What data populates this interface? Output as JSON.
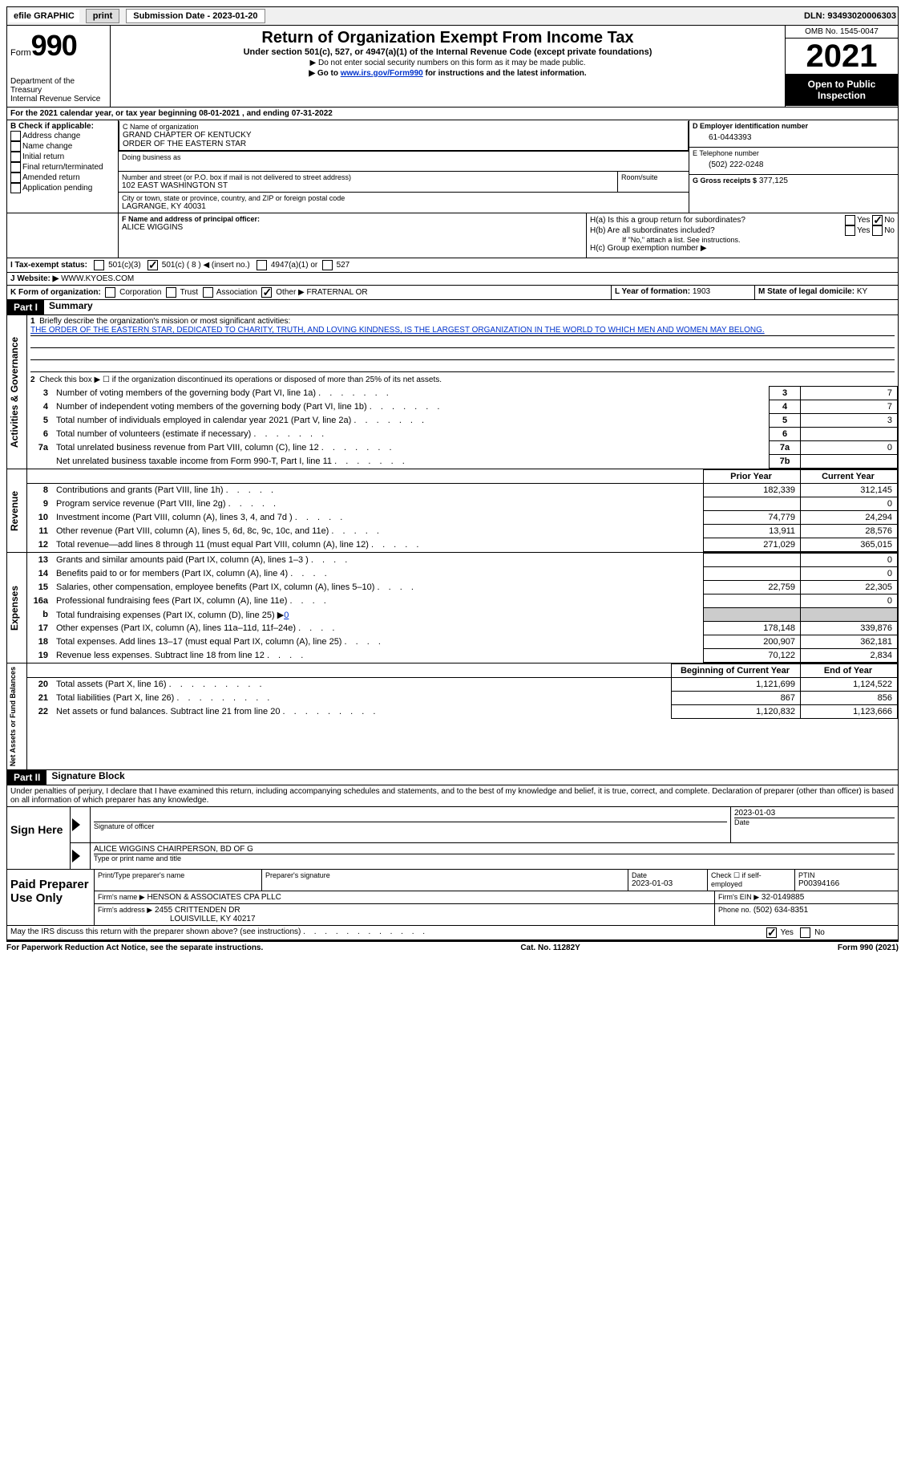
{
  "topbar": {
    "efile": "efile GRAPHIC",
    "print": "print",
    "subdate_label": "Submission Date - 2023-01-20",
    "dln": "DLN: 93493020006303"
  },
  "header": {
    "form_word": "Form",
    "form_num": "990",
    "dept": "Department of the Treasury",
    "irs": "Internal Revenue Service",
    "title": "Return of Organization Exempt From Income Tax",
    "sub": "Under section 501(c), 527, or 4947(a)(1) of the Internal Revenue Code (except private foundations)",
    "note1": "▶ Do not enter social security numbers on this form as it may be made public.",
    "note2_pre": "▶ Go to ",
    "note2_link": "www.irs.gov/Form990",
    "note2_post": " for instructions and the latest information.",
    "omb": "OMB No. 1545-0047",
    "year": "2021",
    "inspect": "Open to Public Inspection"
  },
  "period": {
    "line": "For the 2021 calendar year, or tax year beginning 08-01-2021   , and ending 07-31-2022"
  },
  "sectionB": {
    "label": "B Check if applicable:",
    "addr": "Address change",
    "name": "Name change",
    "init": "Initial return",
    "final": "Final return/terminated",
    "amend": "Amended return",
    "app": "Application pending"
  },
  "sectionC": {
    "label": "C Name of organization",
    "name1": "GRAND CHAPTER OF KENTUCKY",
    "name2": "ORDER OF THE EASTERN STAR",
    "dba": "Doing business as",
    "addr_label": "Number and street (or P.O. box if mail is not delivered to street address)",
    "room": "Room/suite",
    "addr": "102 EAST WASHINGTON ST",
    "city_label": "City or town, state or province, country, and ZIP or foreign postal code",
    "city": "LAGRANGE, KY  40031"
  },
  "sectionD": {
    "label": "D Employer identification number",
    "val": "61-0443393"
  },
  "sectionE": {
    "label": "E Telephone number",
    "val": "(502) 222-0248"
  },
  "sectionG": {
    "label": "G Gross receipts $",
    "val": "377,125"
  },
  "sectionF": {
    "label": "F  Name and address of principal officer:",
    "val": "ALICE WIGGINS"
  },
  "sectionH": {
    "a": "H(a)  Is this a group return for subordinates?",
    "b": "H(b)  Are all subordinates included?",
    "b_note": "If \"No,\" attach a list. See instructions.",
    "c": "H(c)  Group exemption number ▶",
    "yes": "Yes",
    "no": "No"
  },
  "sectionI": {
    "label": "I   Tax-exempt status:",
    "c3": "501(c)(3)",
    "c": "501(c) ( 8 ) ◀ (insert no.)",
    "a1": "4947(a)(1) or",
    "s527": "527"
  },
  "sectionJ": {
    "label": "J   Website: ▶",
    "val": "WWW.KYOES.COM"
  },
  "sectionK": {
    "label": "K Form of organization:",
    "corp": "Corporation",
    "trust": "Trust",
    "assoc": "Association",
    "other": "Other ▶",
    "other_val": "FRATERNAL OR"
  },
  "sectionL": {
    "label": "L Year of formation:",
    "val": "1903"
  },
  "sectionM": {
    "label": "M State of legal domicile:",
    "val": "KY"
  },
  "part1": {
    "hdr": "Part I",
    "title": "Summary",
    "l1a": "Briefly describe the organization's mission or most significant activities:",
    "l1b": "THE ORDER OF THE EASTERN STAR, DEDICATED TO CHARITY, TRUTH, AND LOVING KINDNESS, IS THE LARGEST ORGANIZATION IN THE WORLD TO WHICH MEN AND WOMEN MAY BELONG.",
    "l2": "Check this box ▶ ☐  if the organization discontinued its operations or disposed of more than 25% of its net assets.",
    "rows": [
      {
        "n": "3",
        "t": "Number of voting members of the governing body (Part VI, line 1a)",
        "box": "3",
        "v": "7"
      },
      {
        "n": "4",
        "t": "Number of independent voting members of the governing body (Part VI, line 1b)",
        "box": "4",
        "v": "7"
      },
      {
        "n": "5",
        "t": "Total number of individuals employed in calendar year 2021 (Part V, line 2a)",
        "box": "5",
        "v": "3"
      },
      {
        "n": "6",
        "t": "Total number of volunteers (estimate if necessary)",
        "box": "6",
        "v": ""
      },
      {
        "n": "7a",
        "t": "Total unrelated business revenue from Part VIII, column (C), line 12",
        "box": "7a",
        "v": "0"
      },
      {
        "n": "",
        "t": "Net unrelated business taxable income from Form 990-T, Part I, line 11",
        "box": "7b",
        "v": ""
      }
    ],
    "col_hdr_prior": "Prior Year",
    "col_hdr_current": "Current Year",
    "rev_rows": [
      {
        "n": "8",
        "t": "Contributions and grants (Part VIII, line 1h)",
        "p": "182,339",
        "c": "312,145"
      },
      {
        "n": "9",
        "t": "Program service revenue (Part VIII, line 2g)",
        "p": "",
        "c": "0"
      },
      {
        "n": "10",
        "t": "Investment income (Part VIII, column (A), lines 3, 4, and 7d )",
        "p": "74,779",
        "c": "24,294"
      },
      {
        "n": "11",
        "t": "Other revenue (Part VIII, column (A), lines 5, 6d, 8c, 9c, 10c, and 11e)",
        "p": "13,911",
        "c": "28,576"
      },
      {
        "n": "12",
        "t": "Total revenue—add lines 8 through 11 (must equal Part VIII, column (A), line 12)",
        "p": "271,029",
        "c": "365,015"
      }
    ],
    "exp_rows": [
      {
        "n": "13",
        "t": "Grants and similar amounts paid (Part IX, column (A), lines 1–3 )",
        "p": "",
        "c": "0"
      },
      {
        "n": "14",
        "t": "Benefits paid to or for members (Part IX, column (A), line 4)",
        "p": "",
        "c": "0"
      },
      {
        "n": "15",
        "t": "Salaries, other compensation, employee benefits (Part IX, column (A), lines 5–10)",
        "p": "22,759",
        "c": "22,305"
      },
      {
        "n": "16a",
        "t": "Professional fundraising fees (Part IX, column (A), line 11e)",
        "p": "",
        "c": "0"
      },
      {
        "n": "b",
        "t": "Total fundraising expenses (Part IX, column (D), line 25) ▶",
        "fund": "0",
        "grey": true
      },
      {
        "n": "17",
        "t": "Other expenses (Part IX, column (A), lines 11a–11d, 11f–24e)",
        "p": "178,148",
        "c": "339,876"
      },
      {
        "n": "18",
        "t": "Total expenses. Add lines 13–17 (must equal Part IX, column (A), line 25)",
        "p": "200,907",
        "c": "362,181"
      },
      {
        "n": "19",
        "t": "Revenue less expenses. Subtract line 18 from line 12",
        "p": "70,122",
        "c": "2,834"
      }
    ],
    "na_hdr_begin": "Beginning of Current Year",
    "na_hdr_end": "End of Year",
    "na_rows": [
      {
        "n": "20",
        "t": "Total assets (Part X, line 16)",
        "p": "1,121,699",
        "c": "1,124,522"
      },
      {
        "n": "21",
        "t": "Total liabilities (Part X, line 26)",
        "p": "867",
        "c": "856"
      },
      {
        "n": "22",
        "t": "Net assets or fund balances. Subtract line 21 from line 20",
        "p": "1,120,832",
        "c": "1,123,666"
      }
    ],
    "side_act": "Activities & Governance",
    "side_rev": "Revenue",
    "side_exp": "Expenses",
    "side_na": "Net Assets or Fund Balances"
  },
  "part2": {
    "hdr": "Part II",
    "title": "Signature Block",
    "decl": "Under penalties of perjury, I declare that I have examined this return, including accompanying schedules and statements, and to the best of my knowledge and belief, it is true, correct, and complete. Declaration of preparer (other than officer) is based on all information of which preparer has any knowledge.",
    "sign_here": "Sign Here",
    "sig_officer": "Signature of officer",
    "sig_date": "2023-01-03",
    "date_label": "Date",
    "typed_name": "ALICE WIGGINS CHAIRPERSON, BD OF G",
    "typed_label": "Type or print name and title",
    "paid": "Paid Preparer Use Only",
    "prep_name_label": "Print/Type preparer's name",
    "prep_sig_label": "Preparer's signature",
    "prep_date_label": "Date",
    "prep_date": "2023-01-03",
    "check_self": "Check ☐ if self-employed",
    "ptin_label": "PTIN",
    "ptin": "P00394166",
    "firm_name_label": "Firm's name   ▶",
    "firm_name": "HENSON & ASSOCIATES CPA PLLC",
    "firm_ein_label": "Firm's EIN ▶",
    "firm_ein": "32-0149885",
    "firm_addr_label": "Firm's address ▶",
    "firm_addr1": "2455 CRITTENDEN DR",
    "firm_addr2": "LOUISVILLE, KY  40217",
    "phone_label": "Phone no.",
    "phone": "(502) 634-8351",
    "may_irs": "May the IRS discuss this return with the preparer shown above? (see instructions)",
    "yes": "Yes",
    "no": "No"
  },
  "footer": {
    "pra": "For Paperwork Reduction Act Notice, see the separate instructions.",
    "cat": "Cat. No. 11282Y",
    "form": "Form 990 (2021)"
  }
}
